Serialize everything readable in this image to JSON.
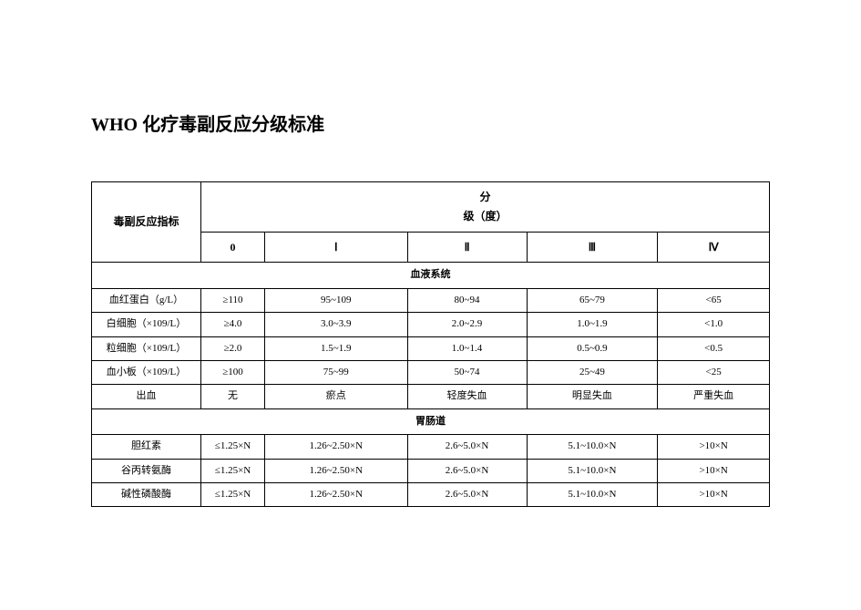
{
  "title": "WHO 化疗毒副反应分级标准",
  "header": {
    "indicator_label": "毒副反应指标",
    "grade_group_line1": "分",
    "grade_group_line2": "级（度）",
    "grades": [
      "0",
      "Ⅰ",
      "Ⅱ",
      "Ⅲ",
      "Ⅳ"
    ]
  },
  "sections": [
    {
      "name": "血液系统",
      "rows": [
        {
          "label": "血红蛋白（g/L）",
          "cells": [
            "≥110",
            "95~109",
            "80~94",
            "65~79",
            "<65"
          ]
        },
        {
          "label": "白细胞（×109/L）",
          "cells": [
            "≥4.0",
            "3.0~3.9",
            "2.0~2.9",
            "1.0~1.9",
            "<1.0"
          ]
        },
        {
          "label": "粒细胞（×109/L）",
          "cells": [
            "≥2.0",
            "1.5~1.9",
            "1.0~1.4",
            "0.5~0.9",
            "<0.5"
          ]
        },
        {
          "label": "血小板（×109/L）",
          "cells": [
            "≥100",
            "75~99",
            "50~74",
            "25~49",
            "<25"
          ]
        },
        {
          "label": "出血",
          "cells": [
            "无",
            "瘀点",
            "轻度失血",
            "明显失血",
            "严重失血"
          ]
        }
      ]
    },
    {
      "name": "胃肠道",
      "rows": [
        {
          "label": "胆红素",
          "cells": [
            "≤1.25×N",
            "1.26~2.50×N",
            "2.6~5.0×N",
            "5.1~10.0×N",
            ">10×N"
          ]
        },
        {
          "label": "谷丙转氨酶",
          "cells": [
            "≤1.25×N",
            "1.26~2.50×N",
            "2.6~5.0×N",
            "5.1~10.0×N",
            ">10×N"
          ]
        },
        {
          "label": "碱性磷酸酶",
          "cells": [
            "≤1.25×N",
            "1.26~2.50×N",
            "2.6~5.0×N",
            "5.1~10.0×N",
            ">10×N"
          ]
        }
      ]
    }
  ],
  "styling": {
    "background_color": "#ffffff",
    "text_color": "#000000",
    "border_color": "#000000",
    "border_width": 1.5,
    "title_fontsize": 20,
    "header_fontsize": 12,
    "cell_fontsize": 11,
    "font_family": "SimSun"
  }
}
